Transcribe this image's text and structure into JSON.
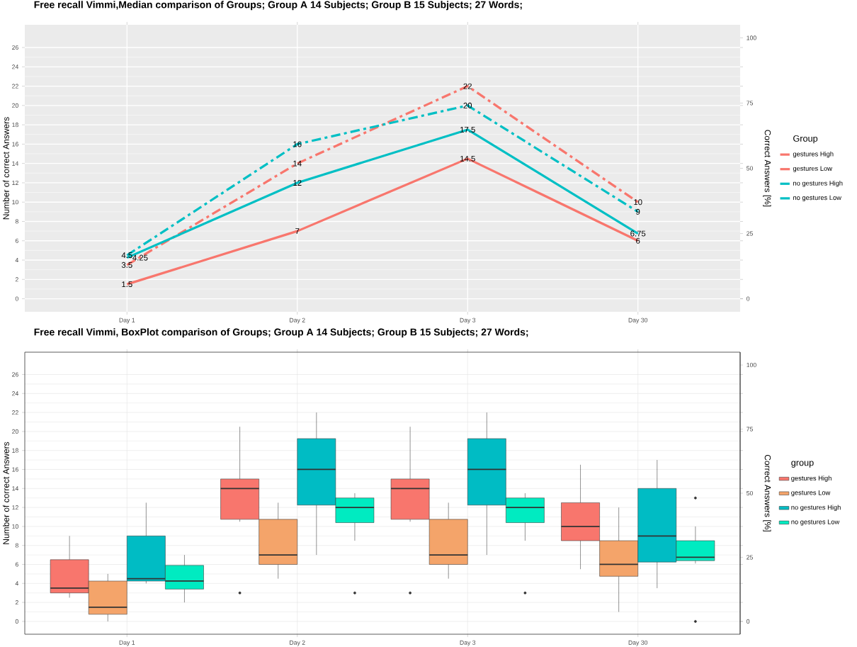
{
  "chart_data": [
    {
      "type": "line",
      "title": "Free recall Vimmi,Median comparison of Groups; Group A 14 Subjects; Group B 15 Subjects; 27 Words;",
      "ylabel": "Number of correct Answers",
      "y2label": "Correct Answers [%]",
      "legend_title": "Group",
      "categories": [
        "Day 1",
        "Day 2",
        "Day 3",
        "Day 30"
      ],
      "series": [
        {
          "name": "gestures High",
          "color": "#f8766d",
          "line_style": "dashed",
          "values": [
            3.5,
            14,
            22,
            10
          ]
        },
        {
          "name": "gestures Low",
          "color": "#f8766d",
          "line_style": "solid",
          "values": [
            1.5,
            7,
            14.5,
            6
          ]
        },
        {
          "name": "no gestures High",
          "color": "#00bfc4",
          "line_style": "dashed",
          "values": [
            4.5,
            16,
            20,
            9
          ]
        },
        {
          "name": "no gestures Low",
          "color": "#00bfc4",
          "line_style": "solid",
          "values": [
            4.25,
            12,
            17.5,
            6.75
          ]
        }
      ],
      "ylim": [
        -1.35,
        28.35
      ],
      "yticks": [
        0,
        2,
        4,
        6,
        8,
        10,
        12,
        14,
        16,
        18,
        20,
        22,
        24,
        26
      ],
      "y2lim": [
        -5,
        105
      ],
      "y2ticks": [
        0,
        25,
        50,
        75,
        100
      ],
      "data_labels": true,
      "grid": true,
      "legend": "right"
    },
    {
      "type": "box",
      "title": "Free recall Vimmi, BoxPlot comparison of Groups; Group A 14 Subjects; Group B 15 Subjects; 27 Words;",
      "ylabel": "Number of correct Answers",
      "y2label": "Correct Answers [%]",
      "legend_title": "group",
      "categories": [
        "Day 1",
        "Day 2",
        "Day 3",
        "Day 30"
      ],
      "series": [
        {
          "name": "gestures High",
          "color": "#f8766d",
          "boxes": [
            {
              "low": 2.5,
              "q1": 3,
              "median": 3.5,
              "q3": 6.5,
              "high": 9
            },
            {
              "low": 10.5,
              "q1": 10.75,
              "median": 14,
              "q3": 15,
              "high": 20.5,
              "outliers": [
                3
              ]
            },
            {
              "low": 10.5,
              "q1": 10.75,
              "median": 14,
              "q3": 15,
              "high": 20.5,
              "outliers": [
                3
              ]
            },
            {
              "low": 5.5,
              "q1": 8.5,
              "median": 10,
              "q3": 12.5,
              "high": 16.5
            }
          ]
        },
        {
          "name": "gestures Low",
          "color": "#f4a46a",
          "boxes": [
            {
              "low": 0,
              "q1": 0.75,
              "median": 1.5,
              "q3": 4.25,
              "high": 5
            },
            {
              "low": 4.5,
              "q1": 6,
              "median": 7,
              "q3": 10.75,
              "high": 12.5
            },
            {
              "low": 4.5,
              "q1": 6,
              "median": 7,
              "q3": 10.75,
              "high": 12.5
            },
            {
              "low": 1,
              "q1": 4.75,
              "median": 6,
              "q3": 8.5,
              "high": 12
            }
          ]
        },
        {
          "name": "no gestures High",
          "color": "#00bcc4",
          "boxes": [
            {
              "low": 4,
              "q1": 4.25,
              "median": 4.5,
              "q3": 9,
              "high": 12.5
            },
            {
              "low": 7,
              "q1": 12.25,
              "median": 16,
              "q3": 19.25,
              "high": 22
            },
            {
              "low": 7,
              "q1": 12.25,
              "median": 16,
              "q3": 19.25,
              "high": 22
            },
            {
              "low": 3.5,
              "q1": 6.25,
              "median": 9,
              "q3": 14,
              "high": 17
            }
          ]
        },
        {
          "name": "no gestures Low",
          "color": "#00ebc1",
          "boxes": [
            {
              "low": 2,
              "q1": 3.4,
              "median": 4.25,
              "q3": 5.9,
              "high": 7
            },
            {
              "low": 8.5,
              "q1": 10.4,
              "median": 12,
              "q3": 13,
              "high": 13.5,
              "outliers": [
                3
              ]
            },
            {
              "low": 8.5,
              "q1": 10.4,
              "median": 12,
              "q3": 13,
              "high": 13.5,
              "outliers": [
                3
              ]
            },
            {
              "low": 6.1,
              "q1": 6.4,
              "median": 6.75,
              "q3": 8.5,
              "high": 10,
              "outliers": [
                13,
                0
              ]
            }
          ]
        }
      ],
      "ylim": [
        -1.35,
        28.35
      ],
      "yticks": [
        0,
        2,
        4,
        6,
        8,
        10,
        12,
        14,
        16,
        18,
        20,
        22,
        24,
        26
      ],
      "y2lim": [
        -5,
        105
      ],
      "y2ticks": [
        0,
        25,
        50,
        75,
        100
      ],
      "grid": true,
      "legend": "right"
    }
  ]
}
